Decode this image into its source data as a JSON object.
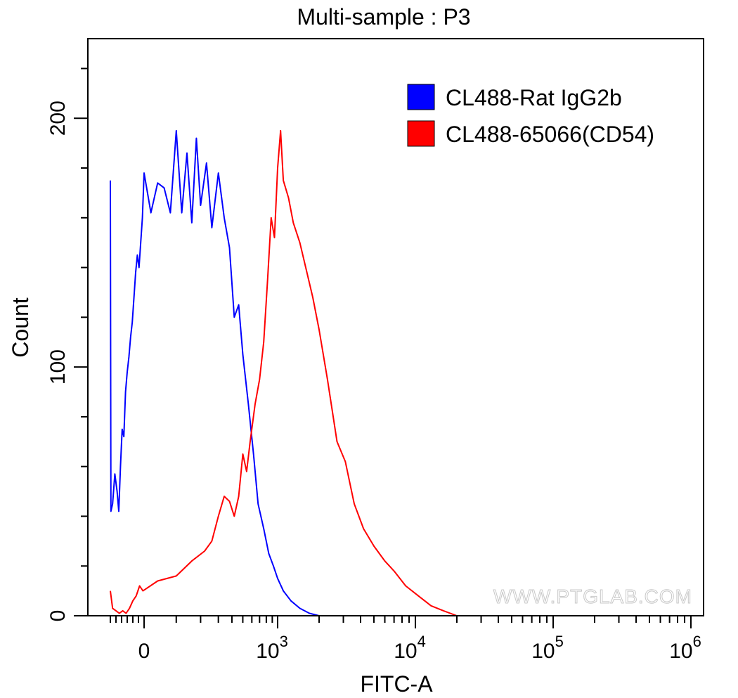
{
  "chart_data": {
    "type": "line",
    "title": "Multi-sample : P3",
    "xlabel": "FITC-A",
    "ylabel": "Count",
    "x_scale": "biexponential",
    "x_ticks": [
      {
        "value": 0,
        "label": "0"
      },
      {
        "value": 1000,
        "label": "10",
        "exp": "3"
      },
      {
        "value": 10000,
        "label": "10",
        "exp": "4"
      },
      {
        "value": 100000,
        "label": "10",
        "exp": "5"
      },
      {
        "value": 1000000,
        "label": "10",
        "exp": "6"
      }
    ],
    "y_ticks": [
      0,
      100,
      200
    ],
    "ylim": [
      0,
      232
    ],
    "grid": false,
    "legend_position": "top-right",
    "watermark": "WWW.PTGLAB.COM",
    "series": [
      {
        "name": "CL488-Rat IgG2b",
        "color": "#0000ff",
        "points": [
          [
            -600,
            175
          ],
          [
            -590,
            42
          ],
          [
            -560,
            45
          ],
          [
            -520,
            57
          ],
          [
            -480,
            50
          ],
          [
            -450,
            42
          ],
          [
            -420,
            60
          ],
          [
            -390,
            75
          ],
          [
            -360,
            72
          ],
          [
            -330,
            90
          ],
          [
            -300,
            98
          ],
          [
            -270,
            104
          ],
          [
            -240,
            112
          ],
          [
            -210,
            118
          ],
          [
            -180,
            128
          ],
          [
            -150,
            138
          ],
          [
            -120,
            145
          ],
          [
            -90,
            140
          ],
          [
            -60,
            150
          ],
          [
            -30,
            160
          ],
          [
            0,
            178
          ],
          [
            20,
            162
          ],
          [
            40,
            174
          ],
          [
            60,
            172
          ],
          [
            80,
            162
          ],
          [
            100,
            195
          ],
          [
            120,
            162
          ],
          [
            140,
            186
          ],
          [
            160,
            158
          ],
          [
            180,
            192
          ],
          [
            200,
            165
          ],
          [
            230,
            182
          ],
          [
            260,
            156
          ],
          [
            300,
            178
          ],
          [
            340,
            160
          ],
          [
            380,
            148
          ],
          [
            420,
            120
          ],
          [
            460,
            125
          ],
          [
            500,
            105
          ],
          [
            560,
            85
          ],
          [
            620,
            65
          ],
          [
            680,
            45
          ],
          [
            760,
            35
          ],
          [
            840,
            25
          ],
          [
            920,
            20
          ],
          [
            1000,
            15
          ],
          [
            1100,
            10
          ],
          [
            1250,
            6
          ],
          [
            1450,
            3
          ],
          [
            1700,
            1
          ],
          [
            2000,
            0
          ]
        ]
      },
      {
        "name": "CL488-65066(CD54)",
        "color": "#ff0000",
        "points": [
          [
            -600,
            10
          ],
          [
            -560,
            3
          ],
          [
            -500,
            2
          ],
          [
            -440,
            1
          ],
          [
            -380,
            2
          ],
          [
            -320,
            1
          ],
          [
            -260,
            3
          ],
          [
            -200,
            6
          ],
          [
            -140,
            8
          ],
          [
            -80,
            12
          ],
          [
            -20,
            10
          ],
          [
            40,
            14
          ],
          [
            100,
            16
          ],
          [
            160,
            22
          ],
          [
            220,
            26
          ],
          [
            260,
            30
          ],
          [
            300,
            40
          ],
          [
            340,
            48
          ],
          [
            380,
            46
          ],
          [
            420,
            40
          ],
          [
            460,
            48
          ],
          [
            500,
            65
          ],
          [
            540,
            58
          ],
          [
            580,
            70
          ],
          [
            640,
            85
          ],
          [
            700,
            95
          ],
          [
            760,
            110
          ],
          [
            820,
            135
          ],
          [
            880,
            160
          ],
          [
            940,
            152
          ],
          [
            1000,
            180
          ],
          [
            1050,
            195
          ],
          [
            1100,
            175
          ],
          [
            1200,
            168
          ],
          [
            1300,
            158
          ],
          [
            1450,
            150
          ],
          [
            1600,
            140
          ],
          [
            1800,
            128
          ],
          [
            2000,
            115
          ],
          [
            2300,
            95
          ],
          [
            2700,
            70
          ],
          [
            3100,
            62
          ],
          [
            3600,
            45
          ],
          [
            4200,
            35
          ],
          [
            5000,
            28
          ],
          [
            6000,
            22
          ],
          [
            7000,
            18
          ],
          [
            8500,
            12
          ],
          [
            10500,
            8
          ],
          [
            13000,
            4
          ],
          [
            16000,
            2
          ],
          [
            20000,
            0
          ]
        ]
      }
    ]
  }
}
